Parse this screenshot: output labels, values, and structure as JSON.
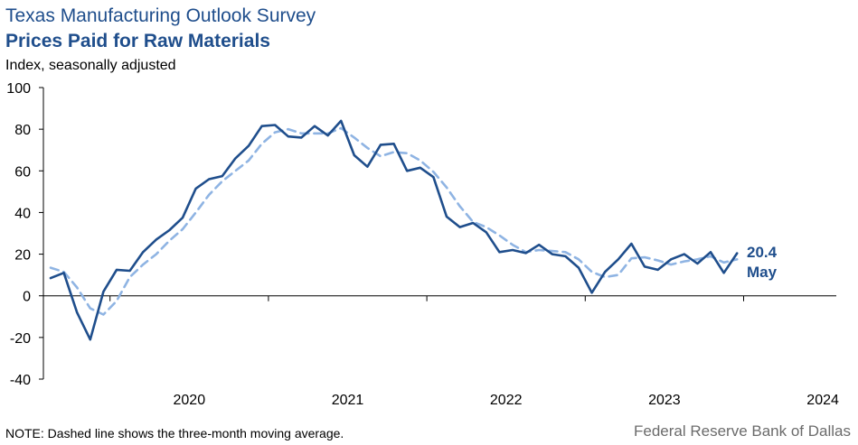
{
  "header": {
    "title": "Texas Manufacturing Outlook Survey",
    "subtitle": "Prices Paid for Raw Materials",
    "unit_label": "Index, seasonally adjusted"
  },
  "footer": {
    "note": "NOTE: Dashed line shows the three-month  moving average.",
    "source": "Federal Reserve Bank of Dallas"
  },
  "colors": {
    "series_solid": "#1f4e8c",
    "series_dashed": "#8fb4e3",
    "axis": "#000000"
  },
  "chart_data": {
    "type": "line",
    "title": "Prices Paid for Raw Materials",
    "ylabel": "Index, seasonally adjusted",
    "ylim": [
      -40,
      100
    ],
    "yticks": [
      "100",
      "80",
      "60",
      "40",
      "20",
      "0",
      "-20",
      "-40"
    ],
    "ytick_values": [
      100,
      80,
      60,
      40,
      20,
      0,
      -20,
      -40
    ],
    "xtick_labels": [
      "2020",
      "2021",
      "2022",
      "2023",
      "2024"
    ],
    "x_start": "2019-08",
    "x_end": "2024-05",
    "grid": false,
    "legend": "none",
    "annotation": {
      "value": "20.4",
      "label": "May"
    },
    "series": [
      {
        "style": "solid",
        "values": [
          8.5,
          11.0,
          -8.0,
          -21.0,
          2.0,
          12.5,
          12.0,
          21.0,
          27.0,
          31.5,
          37.5,
          51.5,
          56.0,
          57.5,
          66.0,
          72.0,
          81.5,
          82.0,
          76.5,
          76.0,
          81.5,
          77.0,
          84.0,
          67.5,
          62.0,
          72.5,
          73.0,
          60.0,
          61.5,
          57.0,
          38.0,
          33.0,
          35.0,
          30.5,
          21.0,
          22.0,
          20.5,
          24.5,
          20.0,
          19.0,
          13.5,
          1.5,
          11.5,
          17.5,
          25.0,
          14.0,
          12.5,
          17.5,
          20.0,
          15.5,
          21.0,
          11.0,
          20.4
        ]
      },
      {
        "style": "dashed",
        "values": [
          13.5,
          11.5,
          4.0,
          -6.0,
          -9.0,
          -2.5,
          9.0,
          15.0,
          20.0,
          26.5,
          32.0,
          40.0,
          48.5,
          55.0,
          60.0,
          65.0,
          73.0,
          78.5,
          80.0,
          78.0,
          78.0,
          78.0,
          80.5,
          76.0,
          71.0,
          67.0,
          69.0,
          68.5,
          65.0,
          59.5,
          52.0,
          43.0,
          35.5,
          33.0,
          29.0,
          24.5,
          21.0,
          22.0,
          21.5,
          21.0,
          17.5,
          11.5,
          9.0,
          10.0,
          18.0,
          18.5,
          17.0,
          15.0,
          16.5,
          17.5,
          19.0,
          16.0,
          17.5
        ]
      }
    ]
  }
}
